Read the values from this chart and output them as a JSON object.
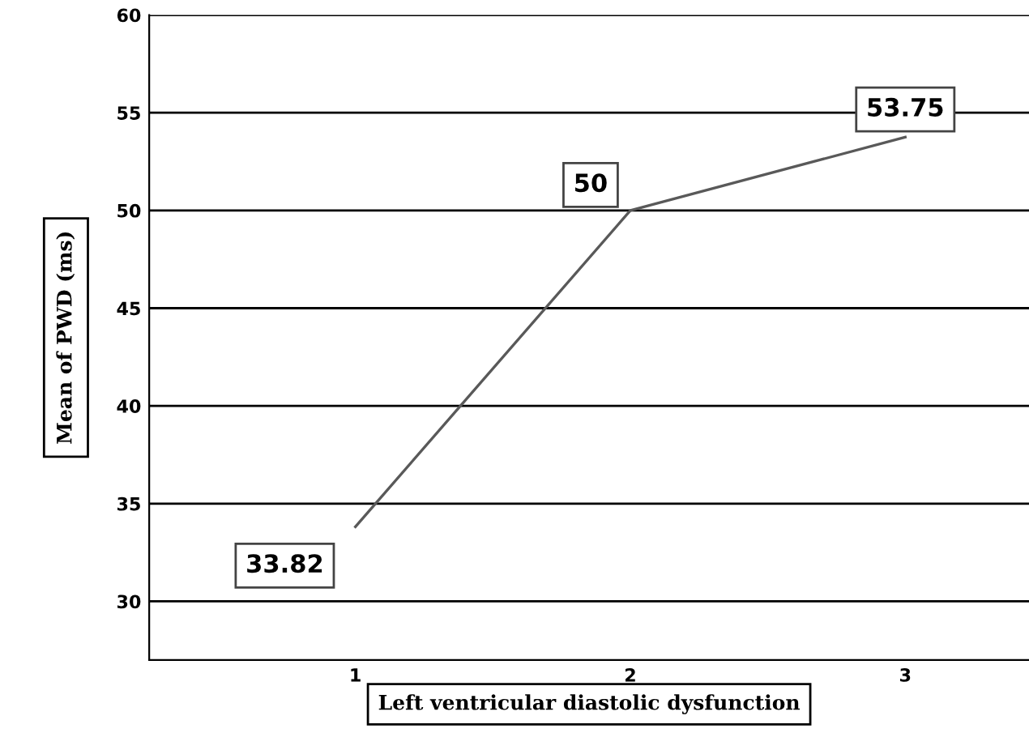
{
  "chart_data": {
    "type": "line",
    "xlabel": "Left ventricular diastolic dysfunction",
    "ylabel": "Mean of PWD (ms)",
    "categories": [
      "1",
      "2",
      "3"
    ],
    "series": [
      {
        "color": "#595959",
        "values": [
          33.82,
          50,
          53.75
        ]
      }
    ],
    "ylim": [
      27,
      60
    ],
    "yticks": [
      30,
      35,
      40,
      45,
      50,
      55,
      60
    ],
    "grid": "y",
    "data_labels": true,
    "marker": "none",
    "line_style": "solid",
    "legend": false
  }
}
